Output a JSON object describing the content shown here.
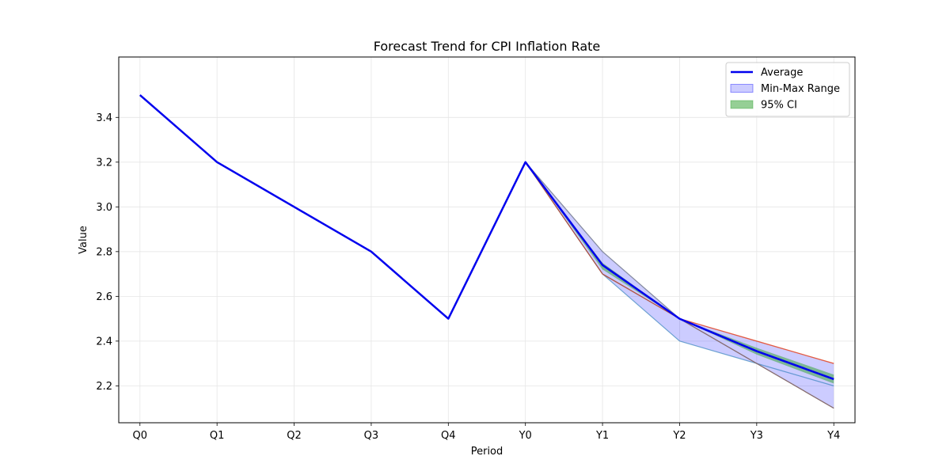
{
  "chart_data": {
    "type": "line",
    "title": "Forecast Trend for CPI Inflation Rate",
    "xlabel": "Period",
    "ylabel": "Value",
    "categories": [
      "Q0",
      "Q1",
      "Q2",
      "Q3",
      "Q4",
      "Y0",
      "Y1",
      "Y2",
      "Y3",
      "Y4"
    ],
    "ylim": [
      2.035,
      3.67
    ],
    "yticks": [
      2.2,
      2.4,
      2.6,
      2.8,
      3.0,
      3.2,
      3.4
    ],
    "ytick_labels": [
      "2.2",
      "2.4",
      "2.6",
      "2.8",
      "3.0",
      "3.2",
      "3.4"
    ],
    "grid": true,
    "legend_position": "top-right",
    "series": [
      {
        "name": "Average",
        "color": "#0000ee",
        "values": [
          3.5,
          3.2,
          3.0,
          2.8,
          2.5,
          3.2,
          2.74,
          2.5,
          2.355,
          2.23
        ]
      }
    ],
    "min_max_range": {
      "name": "Min-Max Range",
      "color": "#0000ff",
      "x": [
        "Y0",
        "Y1",
        "Y2",
        "Y3",
        "Y4"
      ],
      "min": [
        3.2,
        2.7,
        2.4,
        2.3,
        2.1
      ],
      "max": [
        3.2,
        2.8,
        2.5,
        2.4,
        2.3
      ]
    },
    "ci_95": {
      "name": "95% CI",
      "color": "#2ca02c",
      "x": [
        "Y0",
        "Y1",
        "Y2",
        "Y3",
        "Y4"
      ],
      "lower": [
        3.2,
        2.72,
        2.5,
        2.34,
        2.21
      ],
      "upper": [
        3.2,
        2.75,
        2.5,
        2.37,
        2.25
      ]
    },
    "scenarios": [
      {
        "color": "#1f77b4",
        "x": [
          "Y0",
          "Y1",
          "Y2",
          "Y3",
          "Y4"
        ],
        "values": [
          3.2,
          2.7,
          2.4,
          2.3,
          2.2
        ]
      },
      {
        "color": "#ff7f0e",
        "x": [
          "Y0",
          "Y1",
          "Y2",
          "Y3",
          "Y4"
        ],
        "values": [
          3.2,
          2.7,
          2.5,
          2.4,
          2.3
        ]
      },
      {
        "color": "#2ca02c",
        "x": [
          "Y0",
          "Y1",
          "Y2",
          "Y3",
          "Y4"
        ],
        "values": [
          3.2,
          2.8,
          2.5,
          2.3,
          2.1
        ]
      },
      {
        "color": "#d62728",
        "x": [
          "Y0",
          "Y1",
          "Y2",
          "Y3",
          "Y4"
        ],
        "values": [
          3.2,
          2.7,
          2.5,
          2.4,
          2.3
        ]
      },
      {
        "color": "#9467bd",
        "x": [
          "Y0",
          "Y1",
          "Y2",
          "Y3",
          "Y4"
        ],
        "values": [
          3.2,
          2.8,
          2.5,
          2.3,
          2.1
        ]
      },
      {
        "color": "#8c564b",
        "x": [
          "Y0",
          "Y1",
          "Y2",
          "Y3",
          "Y4"
        ],
        "values": [
          3.2,
          2.7,
          2.5,
          2.3,
          2.1
        ]
      }
    ]
  },
  "legend": {
    "items": [
      {
        "label": "Average",
        "kind": "line",
        "color": "#0000ee"
      },
      {
        "label": "Min-Max Range",
        "kind": "patch",
        "color": "#0000ff"
      },
      {
        "label": "95% CI",
        "kind": "patch",
        "color": "#2ca02c"
      }
    ]
  }
}
